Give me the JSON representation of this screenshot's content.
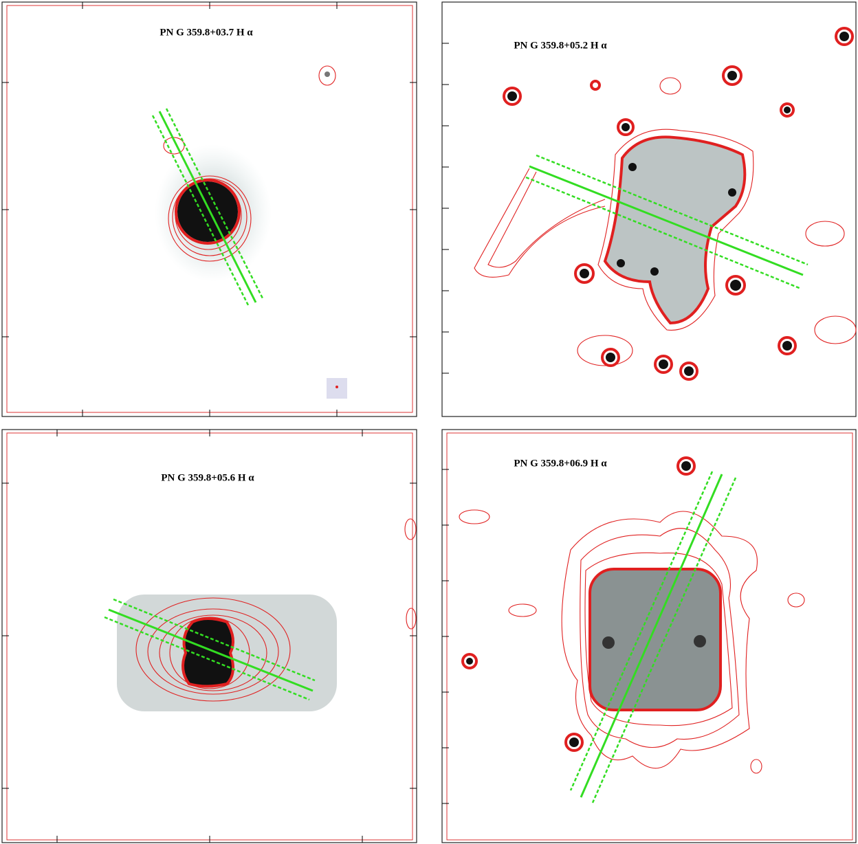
{
  "panels": [
    {
      "title": "PN G 359.8+03.7 H α"
    },
    {
      "title": "PN G 359.8+05.2 H α"
    },
    {
      "title": "PN G 359.8+05.6 H α"
    },
    {
      "title": "PN G 359.8+06.9 H α"
    }
  ]
}
